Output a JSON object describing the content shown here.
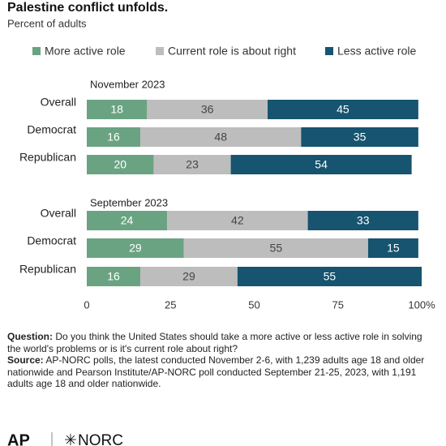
{
  "chart_data": {
    "type": "bar",
    "orientation": "horizontal",
    "stacked": true,
    "title": "Palestine conflict unfolds.",
    "subtitle": "Percent of adults",
    "series": [
      {
        "name": "More active role",
        "color": "#6aa382"
      },
      {
        "name": "Current role is about right",
        "color": "#bdbdbd"
      },
      {
        "name": "Less active role",
        "color": "#16546f"
      }
    ],
    "groups": [
      {
        "label": "November 2023",
        "categories": [
          "Overall",
          "Democrat",
          "Republican"
        ],
        "values": [
          [
            18,
            16,
            20
          ],
          [
            36,
            48,
            23
          ],
          [
            45,
            35,
            54
          ]
        ]
      },
      {
        "label": "September 2023",
        "categories": [
          "Overall",
          "Democrat",
          "Republican"
        ],
        "values": [
          [
            24,
            29,
            16
          ],
          [
            42,
            55,
            29
          ],
          [
            33,
            15,
            55
          ]
        ]
      }
    ],
    "xlim": [
      0,
      100
    ],
    "xticks": [
      0,
      25,
      50,
      75,
      {
        "value": 100,
        "label": "100%"
      }
    ]
  },
  "notes": [
    {
      "label": "Question:",
      "text": "Do you think the United States should take a more active or less active role in solving the world's problems or is it's current role about right?"
    },
    {
      "label": "Source:",
      "text": "AP-NORC polls, the latest conducted November 2-6, with 1,239 adults age 18 and older nationwide and Pearson Institute/AP-NORC poll conducted September 21-25, 2023, with 1,191 adults age 18 and older nationwide."
    }
  ],
  "logos": [
    "AP",
    "NORC"
  ]
}
